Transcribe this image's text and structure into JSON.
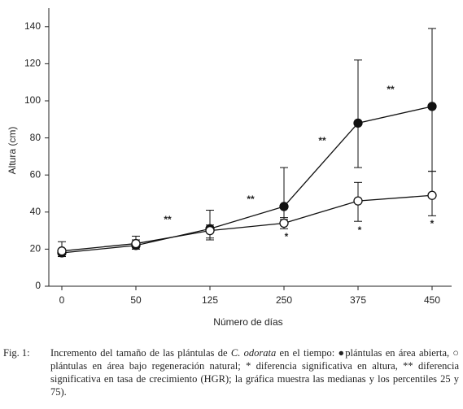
{
  "chart_data": {
    "type": "line",
    "y_label": "Altura (cm)",
    "x_label": "Número de días",
    "categories": [
      "0",
      "50",
      "125",
      "250",
      "375",
      "450"
    ],
    "ylim": [
      0,
      150
    ],
    "yticks": [
      0,
      20,
      40,
      60,
      80,
      100,
      120,
      140
    ],
    "series": [
      {
        "color": "#111111",
        "fill": "#111111",
        "values": [
          18,
          22,
          31,
          43,
          88,
          97
        ],
        "low": [
          16,
          20,
          26,
          36,
          64,
          62
        ],
        "high": [
          20,
          25,
          41,
          64,
          122,
          139
        ]
      },
      {
        "color": "#111111",
        "fill": "#ffffff",
        "values": [
          19,
          23,
          30,
          34,
          46,
          49
        ],
        "low": [
          16,
          20,
          25,
          31,
          35,
          38
        ],
        "high": [
          24,
          27,
          33,
          37,
          56,
          62
        ]
      }
    ],
    "annotations": [
      "**",
      "**",
      "**",
      "**",
      "*",
      "*",
      "*"
    ]
  },
  "caption": {
    "label": "Fig. 1:",
    "before": "Incremento del tamaño de las plántulas de ",
    "species": "C. odorata",
    "after": " en el tiempo: ●plántulas en área abierta, ○ plántulas en área bajo regeneración natural; * diferencia significativa en altura, ** diferencia significativa en tasa de crecimiento (HGR); la gráfica muestra las medianas y los percentiles 25 y 75)."
  }
}
